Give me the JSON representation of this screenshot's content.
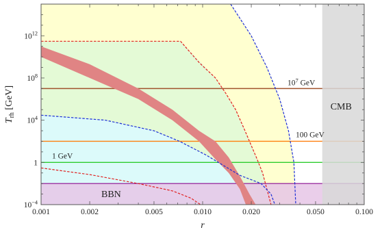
{
  "chart_data": {
    "type": "line",
    "title": "",
    "xlabel": "r",
    "ylabel": "T_rh [GeV]",
    "ylabel_main": "T",
    "ylabel_sub": "rh",
    "ylabel_unit": "[GeV]",
    "x_scale": "log",
    "y_scale": "log",
    "xlim": [
      0.001,
      0.1
    ],
    "ylim": [
      0.0001,
      1000000000000000.0
    ],
    "x_ticks": [
      {
        "value": 0.001,
        "label": "0.001"
      },
      {
        "value": 0.002,
        "label": "0.002"
      },
      {
        "value": 0.005,
        "label": "0.005"
      },
      {
        "value": 0.01,
        "label": "0.010"
      },
      {
        "value": 0.02,
        "label": "0.020"
      },
      {
        "value": 0.05,
        "label": "0.050"
      },
      {
        "value": 0.1,
        "label": "0.100"
      }
    ],
    "y_ticks": [
      {
        "value": 0.0001,
        "base": "10",
        "exp": "−4",
        "plain": ""
      },
      {
        "value": 1,
        "base": "",
        "exp": "",
        "plain": "1"
      },
      {
        "value": 10000,
        "base": "10",
        "exp": "4",
        "plain": ""
      },
      {
        "value": 100000000.0,
        "base": "10",
        "exp": "8",
        "plain": ""
      },
      {
        "value": 1000000000000.0,
        "base": "10",
        "exp": "12",
        "plain": ""
      }
    ],
    "regions": [
      {
        "id": "cmb",
        "label": "CMB",
        "x_from": 0.055,
        "x_to": 0.1,
        "color": "#d8d8d8"
      },
      {
        "id": "bbn",
        "label": "BBN",
        "y_from": 0.0001,
        "y_to": 0.01,
        "color": "#e6c6e6"
      }
    ],
    "horizontal_lines": [
      {
        "label": "10⁷ GeV",
        "label_base": "10",
        "label_exp": "7",
        "label_unit": " GeV",
        "y": 10000000.0,
        "color": "#a0522d"
      },
      {
        "label": "100 GeV",
        "label_base": "",
        "label_exp": "",
        "label_unit": "100 GeV",
        "y": 100,
        "color": "#ff7f0e"
      },
      {
        "label": "1 GeV",
        "label_base": "",
        "label_exp": "",
        "label_unit": "1 GeV",
        "y": 1,
        "color": "#2ecc2e"
      },
      {
        "label": "",
        "y": 0.01,
        "color": "#9b30a0"
      }
    ],
    "shaded_areas": [
      {
        "id": "yellow",
        "color": "#ffffd0",
        "points": [
          [
            0.001,
            1000000000000000.0
          ],
          [
            0.0149,
            1000000000000000.0
          ],
          [
            0.02,
            1000000000000.0
          ],
          [
            0.025,
            1000000000.0
          ],
          [
            0.03,
            1000000.0
          ],
          [
            0.034,
            1000.0
          ],
          [
            0.0367,
            1
          ],
          [
            0.0377,
            0.0001
          ],
          [
            0.001,
            0.0001
          ]
        ]
      },
      {
        "id": "green",
        "color": "#e4fad6",
        "points": [
          [
            0.001,
            300000000000.0
          ],
          [
            0.0073,
            300000000000.0
          ],
          [
            0.012,
            100000000.0
          ],
          [
            0.016,
            100000.0
          ],
          [
            0.0195,
            100
          ],
          [
            0.0235,
            0.1
          ],
          [
            0.0265,
            0.0001
          ],
          [
            0.001,
            0.0001
          ]
        ]
      },
      {
        "id": "cyan",
        "color": "#dcfafa",
        "points": [
          [
            0.001,
            30000.0
          ],
          [
            0.0025,
            10000.0
          ],
          [
            0.005,
            1000.0
          ],
          [
            0.0072,
            100
          ],
          [
            0.0105,
            5
          ],
          [
            0.014,
            0.3
          ],
          [
            0.017,
            0.06
          ],
          [
            0.019,
            0.0001
          ],
          [
            0.001,
            0.0001
          ]
        ]
      }
    ],
    "dashed_curves": [
      {
        "id": "blue-outer",
        "color": "#1d2fd6",
        "points": [
          [
            0.0149,
            1000000000000000.0
          ],
          [
            0.02,
            1000000000000.0
          ],
          [
            0.025,
            1000000000.0
          ],
          [
            0.03,
            1000000.0
          ],
          [
            0.034,
            1000.0
          ],
          [
            0.0367,
            1
          ],
          [
            0.0377,
            0.0001
          ]
        ]
      },
      {
        "id": "red-top",
        "color": "#e02020",
        "points": [
          [
            0.001,
            300000000000.0
          ],
          [
            0.0073,
            300000000000.0
          ],
          [
            0.0095,
            3000000000.0
          ],
          [
            0.012,
            100000000.0
          ],
          [
            0.014,
            3000000.0
          ],
          [
            0.016,
            100000.0
          ],
          [
            0.0183,
            1000.0
          ],
          [
            0.0195,
            100
          ],
          [
            0.0215,
            3
          ],
          [
            0.0235,
            0.1
          ],
          [
            0.0265,
            0.0001
          ]
        ]
      },
      {
        "id": "blue-middle",
        "color": "#1d2fd6",
        "points": [
          [
            0.001,
            30000.0
          ],
          [
            0.0025,
            10000.0
          ],
          [
            0.005,
            1000.0
          ],
          [
            0.0072,
            100
          ],
          [
            0.0105,
            5
          ],
          [
            0.0135,
            0.5
          ],
          [
            0.017,
            0.06
          ],
          [
            0.023,
            0.01
          ],
          [
            0.0265,
            0.001
          ],
          [
            0.028,
            0.0001
          ]
        ]
      },
      {
        "id": "red-bottom",
        "color": "#e02020",
        "points": [
          [
            0.001,
            0.3
          ],
          [
            0.002,
            0.07
          ],
          [
            0.004,
            0.01
          ],
          [
            0.0065,
            0.002
          ],
          [
            0.0085,
            0.0004
          ],
          [
            0.0097,
            0.0001
          ]
        ]
      }
    ],
    "band": {
      "color": "#e08484",
      "upper": [
        [
          0.001,
          100000000000.0
        ],
        [
          0.002,
          2000000000.0
        ],
        [
          0.004,
          10000000.0
        ],
        [
          0.0065,
          100000.0
        ],
        [
          0.0095,
          1000.0
        ],
        [
          0.012,
          100
        ],
        [
          0.0145,
          3
        ],
        [
          0.017,
          0.05
        ],
        [
          0.0195,
          0.001
        ],
        [
          0.0213,
          0.0001
        ]
      ],
      "lower": [
        [
          0.001,
          10000000000.0
        ],
        [
          0.002,
          100000000.0
        ],
        [
          0.004,
          1000000.0
        ],
        [
          0.0065,
          10000.0
        ],
        [
          0.0095,
          100
        ],
        [
          0.012,
          2
        ],
        [
          0.0145,
          0.1
        ],
        [
          0.017,
          0.003
        ],
        [
          0.0185,
          0.0001
        ]
      ]
    }
  }
}
